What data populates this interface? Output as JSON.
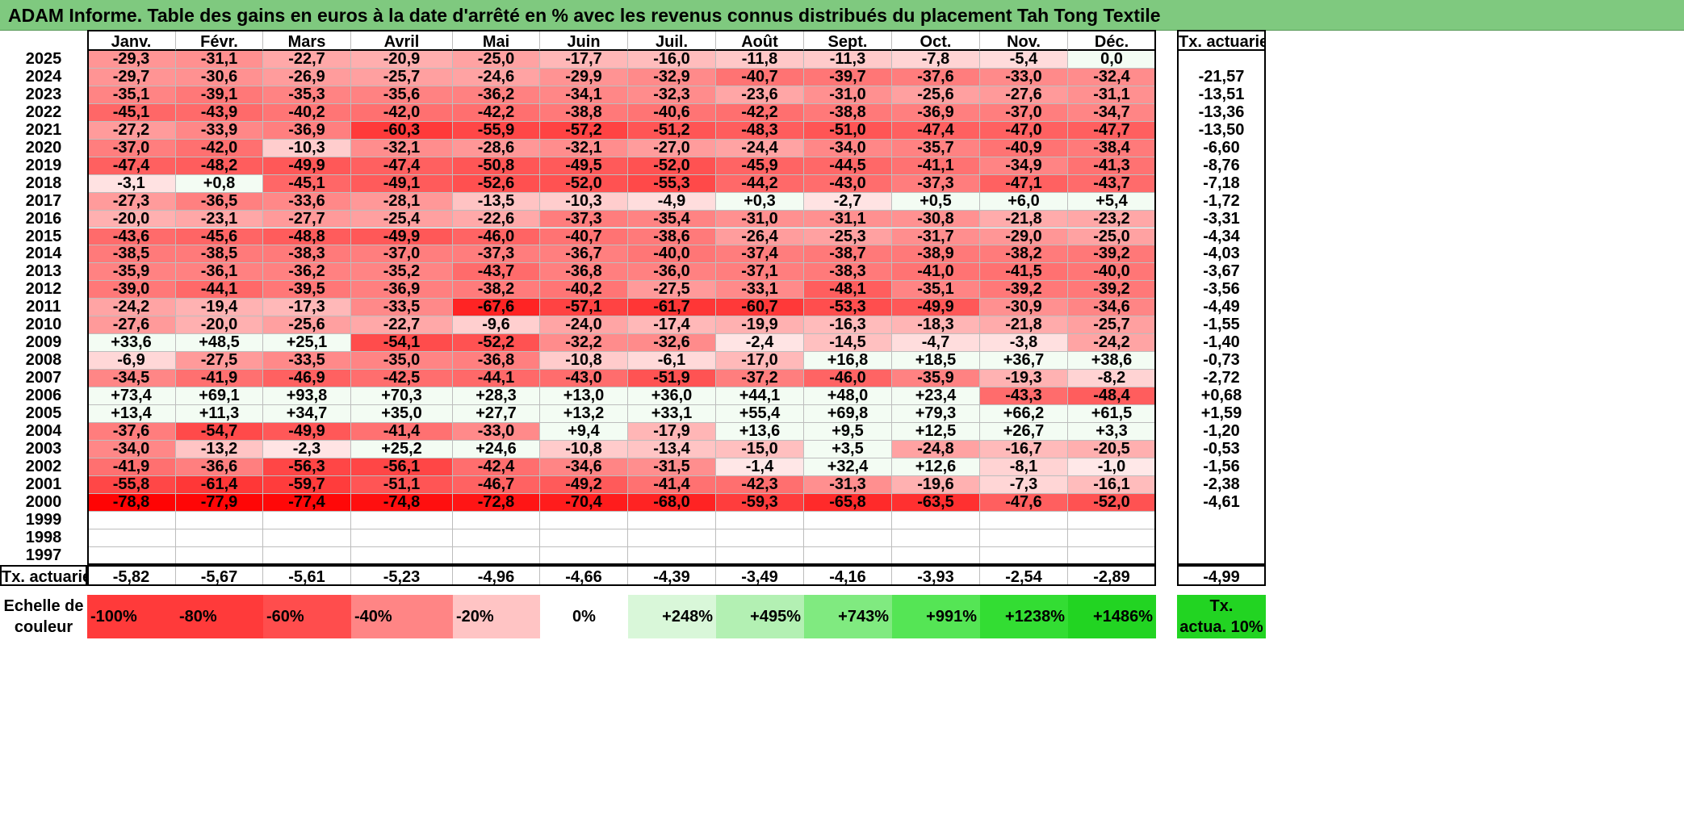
{
  "title": "ADAM Informe. Table des gains en euros à la date d'arrêté en % avec les revenus connus distribués du placement Tah Tong Textile",
  "months": [
    "Janv.",
    "Févr.",
    "Mars",
    "Avril",
    "Mai",
    "Juin",
    "Juil.",
    "Août",
    "Sept.",
    "Oct.",
    "Nov.",
    "Déc."
  ],
  "rate_header": "Tx. actuariel",
  "rows": [
    {
      "year": "2025",
      "values": [
        "-29,3",
        "-31,1",
        "-22,7",
        "-20,9",
        "-25,0",
        "-17,7",
        "-16,0",
        "-11,8",
        "-11,3",
        "-7,8",
        "-5,4",
        "0,0"
      ],
      "rate": ""
    },
    {
      "year": "2024",
      "values": [
        "-29,7",
        "-30,6",
        "-26,9",
        "-25,7",
        "-24,6",
        "-29,9",
        "-32,9",
        "-40,7",
        "-39,7",
        "-37,6",
        "-33,0",
        "-32,4"
      ],
      "rate": "-21,57"
    },
    {
      "year": "2023",
      "values": [
        "-35,1",
        "-39,1",
        "-35,3",
        "-35,6",
        "-36,2",
        "-34,1",
        "-32,3",
        "-23,6",
        "-31,0",
        "-25,6",
        "-27,6",
        "-31,1"
      ],
      "rate": "-13,51"
    },
    {
      "year": "2022",
      "values": [
        "-45,1",
        "-43,9",
        "-40,2",
        "-42,0",
        "-42,2",
        "-38,8",
        "-40,6",
        "-42,2",
        "-38,8",
        "-36,9",
        "-37,0",
        "-34,7"
      ],
      "rate": "-13,36"
    },
    {
      "year": "2021",
      "values": [
        "-27,2",
        "-33,9",
        "-36,9",
        "-60,3",
        "-55,9",
        "-57,2",
        "-51,2",
        "-48,3",
        "-51,0",
        "-47,4",
        "-47,0",
        "-47,7"
      ],
      "rate": "-13,50"
    },
    {
      "year": "2020",
      "values": [
        "-37,0",
        "-42,0",
        "-10,3",
        "-32,1",
        "-28,6",
        "-32,1",
        "-27,0",
        "-24,4",
        "-34,0",
        "-35,7",
        "-40,9",
        "-38,4"
      ],
      "rate": "-6,60"
    },
    {
      "year": "2019",
      "values": [
        "-47,4",
        "-48,2",
        "-49,9",
        "-47,4",
        "-50,8",
        "-49,5",
        "-52,0",
        "-45,9",
        "-44,5",
        "-41,1",
        "-34,9",
        "-41,3"
      ],
      "rate": "-8,76"
    },
    {
      "year": "2018",
      "values": [
        "-3,1",
        "+0,8",
        "-45,1",
        "-49,1",
        "-52,6",
        "-52,0",
        "-55,3",
        "-44,2",
        "-43,0",
        "-37,3",
        "-47,1",
        "-43,7"
      ],
      "rate": "-7,18"
    },
    {
      "year": "2017",
      "values": [
        "-27,3",
        "-36,5",
        "-33,6",
        "-28,1",
        "-13,5",
        "-10,3",
        "-4,9",
        "+0,3",
        "-2,7",
        "+0,5",
        "+6,0",
        "+5,4"
      ],
      "rate": "-1,72"
    },
    {
      "year": "2016",
      "values": [
        "-20,0",
        "-23,1",
        "-27,7",
        "-25,4",
        "-22,6",
        "-37,3",
        "-35,4",
        "-31,0",
        "-31,1",
        "-30,8",
        "-21,8",
        "-23,2"
      ],
      "rate": "-3,31"
    },
    {
      "year": "2015",
      "values": [
        "-43,6",
        "-45,6",
        "-48,8",
        "-49,9",
        "-46,0",
        "-40,7",
        "-38,6",
        "-26,4",
        "-25,3",
        "-31,7",
        "-29,0",
        "-25,0"
      ],
      "rate": "-4,34"
    },
    {
      "year": "2014",
      "values": [
        "-38,5",
        "-38,5",
        "-38,3",
        "-37,0",
        "-37,3",
        "-36,7",
        "-40,0",
        "-37,4",
        "-38,7",
        "-38,9",
        "-38,2",
        "-39,2"
      ],
      "rate": "-4,03"
    },
    {
      "year": "2013",
      "values": [
        "-35,9",
        "-36,1",
        "-36,2",
        "-35,2",
        "-43,7",
        "-36,8",
        "-36,0",
        "-37,1",
        "-38,3",
        "-41,0",
        "-41,5",
        "-40,0"
      ],
      "rate": "-3,67"
    },
    {
      "year": "2012",
      "values": [
        "-39,0",
        "-44,1",
        "-39,5",
        "-36,9",
        "-38,2",
        "-40,2",
        "-27,5",
        "-33,1",
        "-48,1",
        "-35,1",
        "-39,2",
        "-39,2"
      ],
      "rate": "-3,56"
    },
    {
      "year": "2011",
      "values": [
        "-24,2",
        "-19,4",
        "-17,3",
        "-33,5",
        "-67,6",
        "-57,1",
        "-61,7",
        "-60,7",
        "-53,3",
        "-49,9",
        "-30,9",
        "-34,6"
      ],
      "rate": "-4,49"
    },
    {
      "year": "2010",
      "values": [
        "-27,6",
        "-20,0",
        "-25,6",
        "-22,7",
        "-9,6",
        "-24,0",
        "-17,4",
        "-19,9",
        "-16,3",
        "-18,3",
        "-21,8",
        "-25,7"
      ],
      "rate": "-1,55"
    },
    {
      "year": "2009",
      "values": [
        "+33,6",
        "+48,5",
        "+25,1",
        "-54,1",
        "-52,2",
        "-32,2",
        "-32,6",
        "-2,4",
        "-14,5",
        "-4,7",
        "-3,8",
        "-24,2"
      ],
      "rate": "-1,40"
    },
    {
      "year": "2008",
      "values": [
        "-6,9",
        "-27,5",
        "-33,5",
        "-35,0",
        "-36,8",
        "-10,8",
        "-6,1",
        "-17,0",
        "+16,8",
        "+18,5",
        "+36,7",
        "+38,6"
      ],
      "rate": "-0,73"
    },
    {
      "year": "2007",
      "values": [
        "-34,5",
        "-41,9",
        "-46,9",
        "-42,5",
        "-44,1",
        "-43,0",
        "-51,9",
        "-37,2",
        "-46,0",
        "-35,9",
        "-19,3",
        "-8,2"
      ],
      "rate": "-2,72"
    },
    {
      "year": "2006",
      "values": [
        "+73,4",
        "+69,1",
        "+93,8",
        "+70,3",
        "+28,3",
        "+13,0",
        "+36,0",
        "+44,1",
        "+48,0",
        "+23,4",
        "-43,3",
        "-48,4"
      ],
      "rate": "+0,68"
    },
    {
      "year": "2005",
      "values": [
        "+13,4",
        "+11,3",
        "+34,7",
        "+35,0",
        "+27,7",
        "+13,2",
        "+33,1",
        "+55,4",
        "+69,8",
        "+79,3",
        "+66,2",
        "+61,5"
      ],
      "rate": "+1,59"
    },
    {
      "year": "2004",
      "values": [
        "-37,6",
        "-54,7",
        "-49,9",
        "-41,4",
        "-33,0",
        "+9,4",
        "-17,9",
        "+13,6",
        "+9,5",
        "+12,5",
        "+26,7",
        "+3,3"
      ],
      "rate": "-1,20"
    },
    {
      "year": "2003",
      "values": [
        "-34,0",
        "-13,2",
        "-2,3",
        "+25,2",
        "+24,6",
        "-10,8",
        "-13,4",
        "-15,0",
        "+3,5",
        "-24,8",
        "-16,7",
        "-20,5"
      ],
      "rate": "-0,53"
    },
    {
      "year": "2002",
      "values": [
        "-41,9",
        "-36,6",
        "-56,3",
        "-56,1",
        "-42,4",
        "-34,6",
        "-31,5",
        "-1,4",
        "+32,4",
        "+12,6",
        "-8,1",
        "-1,0"
      ],
      "rate": "-1,56"
    },
    {
      "year": "2001",
      "values": [
        "-55,8",
        "-61,4",
        "-59,7",
        "-51,1",
        "-46,7",
        "-49,2",
        "-41,4",
        "-42,3",
        "-31,3",
        "-19,6",
        "-7,3",
        "-16,1"
      ],
      "rate": "-2,38"
    },
    {
      "year": "2000",
      "values": [
        "-78,8",
        "-77,9",
        "-77,4",
        "-74,8",
        "-72,8",
        "-70,4",
        "-68,0",
        "-59,3",
        "-65,8",
        "-63,5",
        "-47,6",
        "-52,0"
      ],
      "rate": "-4,61"
    },
    {
      "year": "1999",
      "values": [
        "",
        "",
        "",
        "",
        "",
        "",
        "",
        "",
        "",
        "",
        "",
        ""
      ],
      "rate": ""
    },
    {
      "year": "1998",
      "values": [
        "",
        "",
        "",
        "",
        "",
        "",
        "",
        "",
        "",
        "",
        "",
        ""
      ],
      "rate": ""
    },
    {
      "year": "1997",
      "values": [
        "",
        "",
        "",
        "",
        "",
        "",
        "",
        "",
        "",
        "",
        "",
        ""
      ],
      "rate": ""
    }
  ],
  "footer": {
    "label": "Tx. actuariel",
    "values": [
      "-5,82",
      "-5,67",
      "-5,61",
      "-5,23",
      "-4,96",
      "-4,66",
      "-4,39",
      "-3,49",
      "-4,16",
      "-3,93",
      "-2,54",
      "-2,89"
    ],
    "total": "-4,99"
  },
  "legend": {
    "label_line1": "Echelle de",
    "label_line2": "couleur",
    "items": [
      "-100%",
      "-80%",
      "-60%",
      "-40%",
      "-20%",
      "0%",
      "+248%",
      "+495%",
      "+743%",
      "+991%",
      "+1238%",
      "+1486%"
    ],
    "colors": [
      "#ff3a3a",
      "#ff3a3a",
      "#ff4d4d",
      "#ff8585",
      "#ffc4c4",
      "#ffffff",
      "#d9f7d9",
      "#b3f0b3",
      "#80ea80",
      "#55e555",
      "#33dd33",
      "#22d422"
    ],
    "side_line1": "Tx.",
    "side_line2": "actua. 10%"
  },
  "colors": {
    "title_bg": "#7fc97f",
    "negative_max": "#ff0000",
    "positive_tint": "#f3fcf3"
  }
}
